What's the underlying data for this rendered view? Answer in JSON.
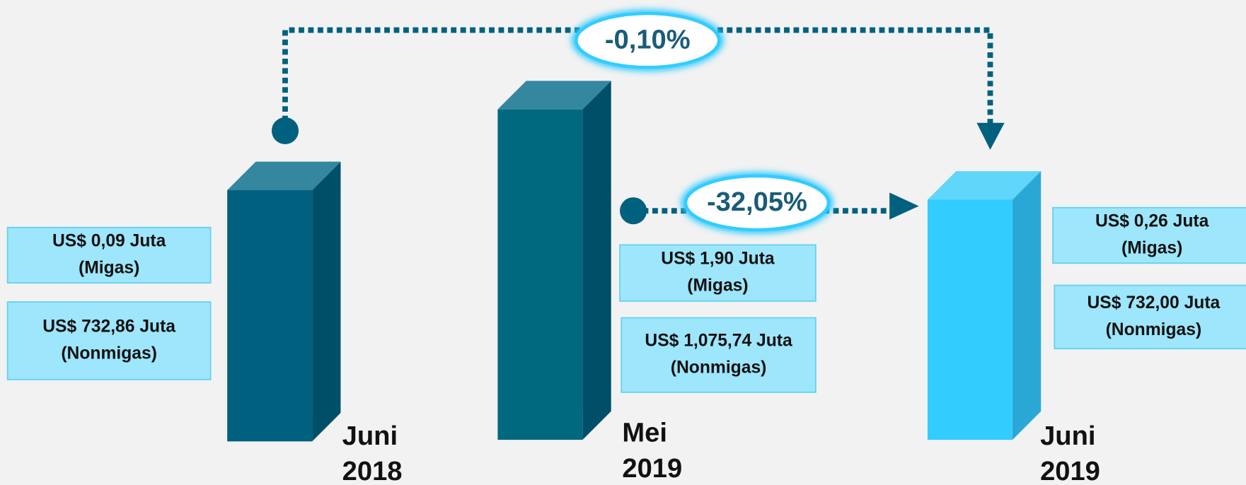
{
  "periods": [
    {
      "label": [
        "Juni",
        "2018"
      ],
      "migas": [
        "US$ 0,09 Juta",
        "(Migas)"
      ],
      "nonmigas": [
        "US$ 732,86 Juta",
        "(Nonmigas)"
      ]
    },
    {
      "label": [
        "Mei",
        "2019"
      ],
      "migas": [
        "US$ 1,90 Juta",
        "(Migas)"
      ],
      "nonmigas": [
        "US$ 1,075,74 Juta",
        "(Nonmigas)"
      ]
    },
    {
      "label": [
        "Juni",
        "2019"
      ],
      "migas": [
        "US$ 0,26 Juta",
        "(Migas)"
      ],
      "nonmigas": [
        "US$ 732,00 Juta",
        "(Nonmigas)"
      ]
    }
  ],
  "changes": {
    "year_on_year": "-0,10%",
    "month_on_month": "-32,05%"
  }
}
